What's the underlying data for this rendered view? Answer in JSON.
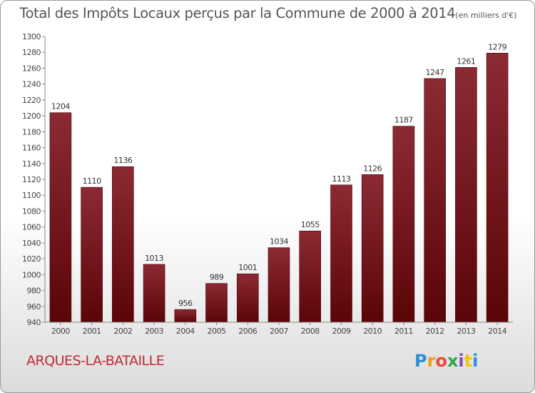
{
  "chart_data": {
    "type": "bar",
    "title": "Total des Impôts Locaux perçus par la Commune de 2000 à 2014",
    "unit_label": "(en milliers d'€)",
    "categories": [
      "2000",
      "2001",
      "2002",
      "2003",
      "2004",
      "2005",
      "2006",
      "2007",
      "2008",
      "2009",
      "2010",
      "2011",
      "2012",
      "2013",
      "2014"
    ],
    "values": [
      1204,
      1110,
      1136,
      1013,
      956,
      989,
      1001,
      1034,
      1055,
      1113,
      1126,
      1187,
      1247,
      1261,
      1279
    ],
    "ylim": [
      940,
      1300
    ],
    "ytick_step": 20,
    "xlabel": "",
    "ylabel": "",
    "grid": false,
    "bar_color": "#7a1a22"
  },
  "footer": {
    "commune": "ARQUES-LA-BATAILLE",
    "logo_letters": [
      "P",
      "r",
      "o",
      "x",
      "i",
      "t",
      "i"
    ],
    "logo_colors": [
      "#2a8fd6",
      "#f39c12",
      "#e74c3c",
      "#2aa84a",
      "#8e44ad",
      "#f1c40f",
      "#2a8fd6"
    ]
  }
}
